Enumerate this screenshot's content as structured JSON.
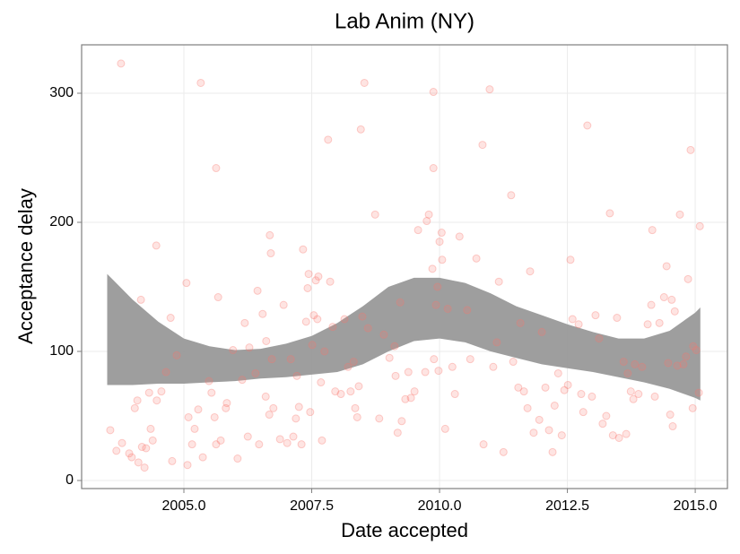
{
  "chart_data": {
    "type": "scatter",
    "title": "Lab Anim (NY)",
    "x_label": "Date accepted",
    "y_label": "Acceptance delay",
    "xlim": [
      2003.0,
      2015.63
    ],
    "ylim": [
      -6.25,
      337.5
    ],
    "xticks": [
      {
        "value": 2005,
        "label": "2005.0"
      },
      2007.5,
      {
        "value": 2010,
        "label": "2010.0"
      },
      2012.5,
      {
        "value": 2015,
        "label": "2015.0"
      }
    ],
    "yticks": [
      0,
      100,
      200,
      300
    ],
    "grid": true,
    "points": {
      "color": "#f8766d",
      "x": [
        2003.56,
        2003.68,
        2003.77,
        2003.79,
        2003.93,
        2003.98,
        2004.04,
        2004.09,
        2004.11,
        2004.16,
        2004.18,
        2004.23,
        2004.26,
        2004.32,
        2004.35,
        2004.39,
        2004.46,
        2004.47,
        2004.56,
        2004.65,
        2004.74,
        2004.77,
        2004.86,
        2005.05,
        2005.07,
        2005.09,
        2005.16,
        2005.21,
        2005.28,
        2005.33,
        2005.37,
        2005.49,
        2005.54,
        2005.6,
        2005.63,
        2005.63,
        2005.67,
        2005.72,
        2005.82,
        2005.84,
        2005.96,
        2006.05,
        2006.14,
        2006.19,
        2006.25,
        2006.28,
        2006.4,
        2006.44,
        2006.47,
        2006.54,
        2006.6,
        2006.61,
        2006.67,
        2006.68,
        2006.7,
        2006.72,
        2006.75,
        2006.88,
        2006.95,
        2007.02,
        2007.09,
        2007.14,
        2007.19,
        2007.21,
        2007.25,
        2007.3,
        2007.33,
        2007.39,
        2007.42,
        2007.44,
        2007.47,
        2007.51,
        2007.54,
        2007.58,
        2007.61,
        2007.63,
        2007.68,
        2007.7,
        2007.75,
        2007.82,
        2007.86,
        2007.91,
        2007.96,
        2008.07,
        2008.14,
        2008.21,
        2008.26,
        2008.32,
        2008.35,
        2008.39,
        2008.42,
        2008.46,
        2008.49,
        2008.53,
        2008.6,
        2008.74,
        2008.82,
        2008.91,
        2009.02,
        2009.12,
        2009.14,
        2009.18,
        2009.23,
        2009.26,
        2009.33,
        2009.39,
        2009.44,
        2009.51,
        2009.58,
        2009.72,
        2009.75,
        2009.79,
        2009.86,
        2009.88,
        2009.88,
        2009.89,
        2009.93,
        2009.96,
        2009.98,
        2010.0,
        2010.04,
        2010.05,
        2010.11,
        2010.16,
        2010.25,
        2010.3,
        2010.39,
        2010.54,
        2010.6,
        2010.72,
        2010.84,
        2010.86,
        2010.98,
        2011.05,
        2011.12,
        2011.16,
        2011.25,
        2011.4,
        2011.44,
        2011.54,
        2011.58,
        2011.65,
        2011.72,
        2011.77,
        2011.84,
        2011.95,
        2012.0,
        2012.07,
        2012.14,
        2012.21,
        2012.25,
        2012.32,
        2012.39,
        2012.44,
        2012.51,
        2012.56,
        2012.6,
        2012.72,
        2012.77,
        2012.81,
        2012.89,
        2012.98,
        2013.05,
        2013.12,
        2013.19,
        2013.26,
        2013.33,
        2013.39,
        2013.47,
        2013.51,
        2013.6,
        2013.65,
        2013.68,
        2013.74,
        2013.79,
        2013.82,
        2013.89,
        2013.96,
        2014.07,
        2014.14,
        2014.16,
        2014.21,
        2014.3,
        2014.39,
        2014.44,
        2014.47,
        2014.51,
        2014.54,
        2014.56,
        2014.6,
        2014.65,
        2014.7,
        2014.77,
        2014.82,
        2014.86,
        2014.91,
        2014.95,
        2014.96,
        2015.02,
        2015.07,
        2015.09
      ],
      "values": [
        39,
        23,
        323,
        29,
        21,
        18,
        56,
        62,
        14,
        140,
        26,
        10,
        25,
        68,
        40,
        31,
        182,
        62,
        69,
        84,
        126,
        15,
        97,
        153,
        12,
        49,
        28,
        40,
        55,
        308,
        18,
        77,
        68,
        49,
        28,
        242,
        142,
        31,
        56,
        60,
        101,
        17,
        78,
        122,
        34,
        103,
        83,
        147,
        28,
        129,
        65,
        108,
        51,
        190,
        176,
        94,
        56,
        32,
        136,
        29,
        94,
        34,
        48,
        81,
        57,
        28,
        179,
        123,
        149,
        160,
        53,
        105,
        128,
        155,
        125,
        158,
        76,
        31,
        100,
        264,
        154,
        119,
        69,
        67,
        125,
        88,
        69,
        92,
        56,
        49,
        73,
        272,
        127,
        308,
        118,
        206,
        48,
        113,
        95,
        104,
        81,
        37,
        138,
        46,
        63,
        84,
        64,
        69,
        194,
        84,
        201,
        206,
        164,
        301,
        242,
        94,
        136,
        150,
        85,
        185,
        192,
        171,
        40,
        133,
        88,
        67,
        189,
        132,
        94,
        172,
        260,
        28,
        303,
        88,
        107,
        154,
        22,
        221,
        92,
        72,
        122,
        69,
        56,
        162,
        37,
        47,
        115,
        72,
        39,
        22,
        58,
        83,
        35,
        70,
        74,
        171,
        125,
        121,
        67,
        53,
        275,
        65,
        128,
        110,
        44,
        50,
        207,
        35,
        126,
        33,
        92,
        36,
        83,
        69,
        63,
        90,
        67,
        88,
        121,
        136,
        194,
        65,
        122,
        142,
        166,
        91,
        51,
        140,
        42,
        131,
        89,
        206,
        90,
        96,
        156,
        256,
        56,
        104,
        101,
        68,
        197
      ]
    },
    "band": {
      "color": "#999999",
      "x": [
        2003.5,
        2004.0,
        2004.5,
        2005.0,
        2005.5,
        2006.0,
        2006.5,
        2007.0,
        2007.5,
        2008.0,
        2008.5,
        2009.0,
        2009.5,
        2010.0,
        2010.5,
        2011.0,
        2011.5,
        2012.0,
        2012.5,
        2013.0,
        2013.5,
        2014.0,
        2014.5,
        2015.0,
        2015.1
      ],
      "upper": [
        160,
        140,
        123,
        110,
        104,
        101,
        102,
        106,
        112,
        122,
        135,
        150,
        157,
        157,
        153,
        145,
        135,
        128,
        121,
        115,
        110,
        110,
        116,
        130,
        134
      ],
      "lower": [
        74,
        74,
        75,
        75,
        76,
        77,
        79,
        80,
        82,
        84,
        90,
        100,
        108,
        110,
        107,
        100,
        95,
        90,
        87,
        84,
        80,
        76,
        71,
        64,
        62
      ]
    }
  }
}
